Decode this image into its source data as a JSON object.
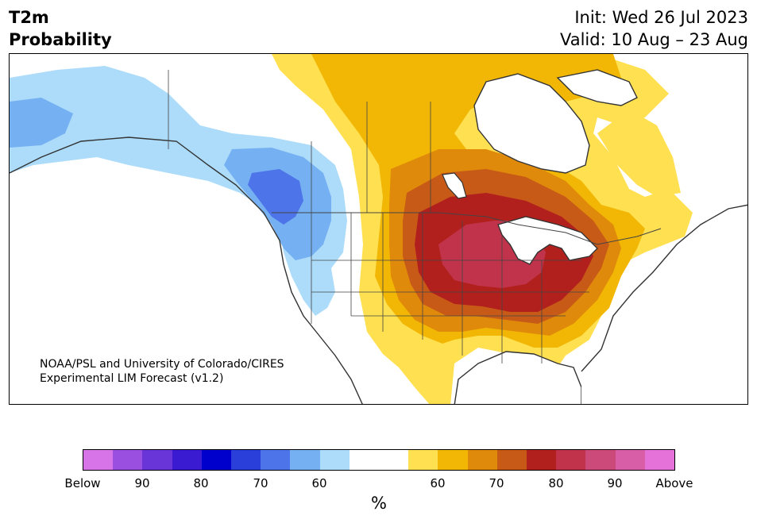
{
  "header": {
    "variable": "T2m",
    "subtitle": "Probability",
    "init": "Init: Wed 26 Jul 2023",
    "valid": "Valid: 10 Aug – 23 Aug"
  },
  "credit": {
    "line1": "NOAA/PSL and University of Colorado/CIRES",
    "line2": "Experimental LIM Forecast (v1.2)"
  },
  "colorbar": {
    "colors": [
      "#d775e8",
      "#9b4fe0",
      "#6a35d8",
      "#3a1bd1",
      "#0000cc",
      "#2a3fd9",
      "#4d74e8",
      "#75b0f2",
      "#acdcfa",
      "#ffffff",
      "#ffffff",
      "#ffe050",
      "#f2b705",
      "#e08a0b",
      "#c85a18",
      "#b2201e",
      "#c0334a",
      "#cc4a7a",
      "#d85ea8",
      "#e472d8"
    ],
    "ticks": [
      "Below",
      "90",
      "80",
      "70",
      "60",
      "60",
      "70",
      "80",
      "90",
      "Above"
    ],
    "label": "%"
  },
  "map": {
    "categories": {
      "below_60": "#acdcfa",
      "below_70": "#75b0f2",
      "below_80": "#4d74e8",
      "above_60": "#ffe050",
      "above_70": "#f2b705",
      "above_80": "#e08a0b",
      "above_85": "#c85a18",
      "above_90": "#b2201e",
      "above_95": "#c0334a",
      "water": "#ffffff",
      "coast": "#333333"
    }
  }
}
